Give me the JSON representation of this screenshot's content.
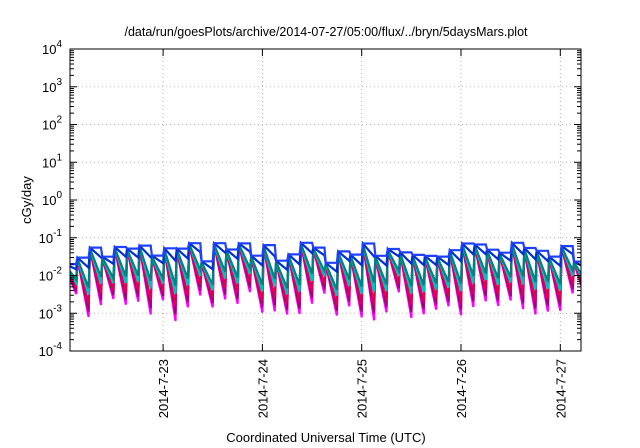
{
  "chart_data": {
    "type": "line",
    "title": "/data/run/goesPlots/archive/2014-07-27/05:00/flux/../bryn/5daysMars.plot",
    "xlabel": "Coordinated Universal Time (UTC)",
    "ylabel": "cGy/day",
    "y_scale": "log",
    "ylim": [
      0.0001,
      10000
    ],
    "xlim": [
      "2014-07-22T01:30",
      "2014-07-27T05:00"
    ],
    "y_ticks": [
      {
        "value": 0.0001,
        "base": "10",
        "exp": "-4"
      },
      {
        "value": 0.001,
        "base": "10",
        "exp": "-3"
      },
      {
        "value": 0.01,
        "base": "10",
        "exp": "-2"
      },
      {
        "value": 0.1,
        "base": "10",
        "exp": "-1"
      },
      {
        "value": 1,
        "base": "10",
        "exp": "0"
      },
      {
        "value": 10,
        "base": "10",
        "exp": "1"
      },
      {
        "value": 100,
        "base": "10",
        "exp": "2"
      },
      {
        "value": 1000,
        "base": "10",
        "exp": "3"
      },
      {
        "value": 10000,
        "base": "10",
        "exp": "4"
      }
    ],
    "x_ticks": [
      {
        "value": "2014-07-23T00:00",
        "label": "2014-7-23"
      },
      {
        "value": "2014-07-24T00:00",
        "label": "2014-7-24"
      },
      {
        "value": "2014-07-25T00:00",
        "label": "2014-7-25"
      },
      {
        "value": "2014-07-26T00:00",
        "label": "2014-7-26"
      },
      {
        "value": "2014-07-27T00:00",
        "label": "2014-7-27"
      }
    ],
    "grid": true,
    "series_colors": [
      "#ff00ff",
      "#a0007a",
      "#e00050",
      "#00c0c0",
      "#008080",
      "#0030d0",
      "#2040ff"
    ],
    "pattern": {
      "period_hours": 3,
      "peak_value_range": [
        0.02,
        0.08
      ],
      "trough_value_range": [
        0.0003,
        0.003
      ],
      "series_ratio_to_top": [
        0.12,
        0.2,
        0.3,
        0.45,
        0.55,
        0.85,
        1.0
      ]
    }
  }
}
